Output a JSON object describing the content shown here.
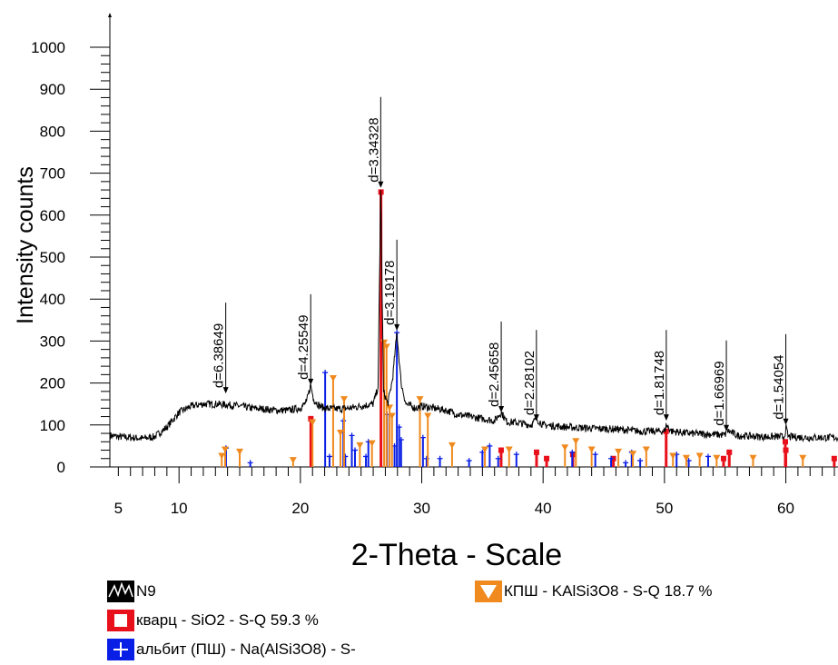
{
  "chart_data": {
    "type": "line",
    "title": "",
    "xlabel": "2-Theta - Scale",
    "ylabel": "Intensity counts",
    "xlim": [
      4.3,
      64.3
    ],
    "ylim": [
      0,
      1000
    ],
    "x_ticks": [
      5,
      10,
      20,
      30,
      40,
      50,
      60
    ],
    "x_tick_labels": [
      "5",
      "10",
      "20",
      "30",
      "40",
      "50",
      "60"
    ],
    "y_ticks": [
      0,
      100,
      200,
      300,
      400,
      500,
      600,
      700,
      800,
      900,
      1000
    ],
    "y_tick_labels": [
      "0",
      "100",
      "200",
      "300",
      "400",
      "500",
      "600",
      "700",
      "800",
      "900",
      "1000"
    ],
    "legend_position": "bottom",
    "pattern": {
      "name": "N9",
      "color": "#000000",
      "points": [
        [
          4.3,
          75
        ],
        [
          5,
          72
        ],
        [
          6,
          70
        ],
        [
          7,
          68
        ],
        [
          8,
          72
        ],
        [
          9,
          95
        ],
        [
          10,
          130
        ],
        [
          11,
          145
        ],
        [
          12,
          150
        ],
        [
          13,
          150
        ],
        [
          14,
          148
        ],
        [
          15,
          145
        ],
        [
          16,
          140
        ],
        [
          17,
          138
        ],
        [
          18,
          135
        ],
        [
          19,
          135
        ],
        [
          20,
          140
        ],
        [
          20.5,
          155
        ],
        [
          20.85,
          195
        ],
        [
          21.1,
          160
        ],
        [
          21.6,
          145
        ],
        [
          22,
          140
        ],
        [
          23,
          138
        ],
        [
          24,
          140
        ],
        [
          25,
          145
        ],
        [
          26,
          150
        ],
        [
          26.4,
          190
        ],
        [
          26.62,
          660
        ],
        [
          26.85,
          180
        ],
        [
          27.2,
          150
        ],
        [
          27.6,
          210
        ],
        [
          27.95,
          320
        ],
        [
          28.3,
          200
        ],
        [
          28.7,
          150
        ],
        [
          29.5,
          140
        ],
        [
          30,
          145
        ],
        [
          31,
          140
        ],
        [
          32,
          135
        ],
        [
          33,
          125
        ],
        [
          34,
          120
        ],
        [
          35,
          115
        ],
        [
          36,
          110
        ],
        [
          36.55,
          130
        ],
        [
          37,
          108
        ],
        [
          38,
          105
        ],
        [
          39,
          100
        ],
        [
          39.45,
          115
        ],
        [
          40,
          100
        ],
        [
          42,
          95
        ],
        [
          44,
          92
        ],
        [
          46,
          90
        ],
        [
          48,
          85
        ],
        [
          50,
          85
        ],
        [
          50.15,
          100
        ],
        [
          50.6,
          85
        ],
        [
          52,
          80
        ],
        [
          54,
          78
        ],
        [
          55,
          76
        ],
        [
          55.1,
          88
        ],
        [
          56,
          75
        ],
        [
          58,
          72
        ],
        [
          59.9,
          72
        ],
        [
          60,
          95
        ],
        [
          60.2,
          72
        ],
        [
          62,
          70
        ],
        [
          64.3,
          70
        ]
      ]
    },
    "peak_labels": [
      {
        "label": "d=6.38649",
        "x": 13.85,
        "y": 175
      },
      {
        "label": "d=4.25549",
        "x": 20.85,
        "y": 195
      },
      {
        "label": "d=3.34328",
        "x": 26.62,
        "y": 665
      },
      {
        "label": "d=3.19178",
        "x": 27.95,
        "y": 325
      },
      {
        "label": "d=2.45658",
        "x": 36.55,
        "y": 130
      },
      {
        "label": "d=2.28102",
        "x": 39.45,
        "y": 110
      },
      {
        "label": "d=1.81748",
        "x": 50.15,
        "y": 110
      },
      {
        "label": "d=1.66969",
        "x": 55.1,
        "y": 85
      },
      {
        "label": "d=1.54054",
        "x": 60.0,
        "y": 100
      }
    ],
    "series": [
      {
        "name": "кварц - SiO2 - S-Q 59.3 %",
        "color": "#e8101a",
        "marker": "square",
        "x": [
          20.86,
          26.64,
          36.54,
          39.46,
          40.29,
          42.45,
          45.79,
          50.14,
          54.87,
          55.34,
          59.96,
          60.0,
          63.99
        ],
        "y": [
          115,
          655,
          40,
          35,
          20,
          30,
          20,
          85,
          20,
          35,
          60,
          40,
          20
        ]
      },
      {
        "name": "альбит (ПШ) - Na(AlSi3O8) - S-",
        "color": "#0a1fe6",
        "marker": "plus",
        "x": [
          13.87,
          15.87,
          22.04,
          22.4,
          23.54,
          23.7,
          24.24,
          24.5,
          25.4,
          25.6,
          27.14,
          27.76,
          27.95,
          28.14,
          28.3,
          30.1,
          30.4,
          31.5,
          33.9,
          35.0,
          35.6,
          36.3,
          37.8,
          42.4,
          44.3,
          45.6,
          46.8,
          47.3,
          48.0,
          51.0,
          52.0,
          53.6
        ],
        "y": [
          45,
          10,
          225,
          25,
          110,
          25,
          75,
          40,
          25,
          60,
          125,
          50,
          320,
          95,
          65,
          70,
          20,
          20,
          15,
          35,
          50,
          20,
          30,
          35,
          30,
          20,
          10,
          35,
          15,
          30,
          15,
          25
        ]
      },
      {
        "name": "КПШ - KAlSi3O8 - S-Q 18.7 %",
        "color": "#f08a1e",
        "marker": "triangle",
        "x": [
          13.52,
          13.8,
          15.0,
          19.4,
          21.0,
          22.7,
          23.3,
          23.6,
          24.9,
          25.9,
          26.9,
          27.1,
          27.35,
          27.55,
          29.85,
          30.5,
          32.5,
          35.2,
          37.2,
          41.8,
          42.7,
          44.0,
          46.2,
          47.4,
          48.5,
          50.7,
          51.8,
          52.9,
          54.3,
          57.3,
          61.4
        ],
        "y": [
          25,
          40,
          35,
          15,
          105,
          210,
          80,
          160,
          50,
          55,
          295,
          285,
          140,
          120,
          160,
          120,
          50,
          40,
          40,
          45,
          60,
          40,
          35,
          30,
          40,
          25,
          20,
          25,
          20,
          20,
          20
        ]
      }
    ]
  },
  "legend": {
    "pattern_label": "N9",
    "quartz_label": "кварц - SiO2 - S-Q 59.3 %",
    "albite_label": "альбит (ПШ) - Na(AlSi3O8) - S-",
    "kfeldspar_label": "КПШ - KAlSi3O8 - S-Q 18.7 %"
  }
}
